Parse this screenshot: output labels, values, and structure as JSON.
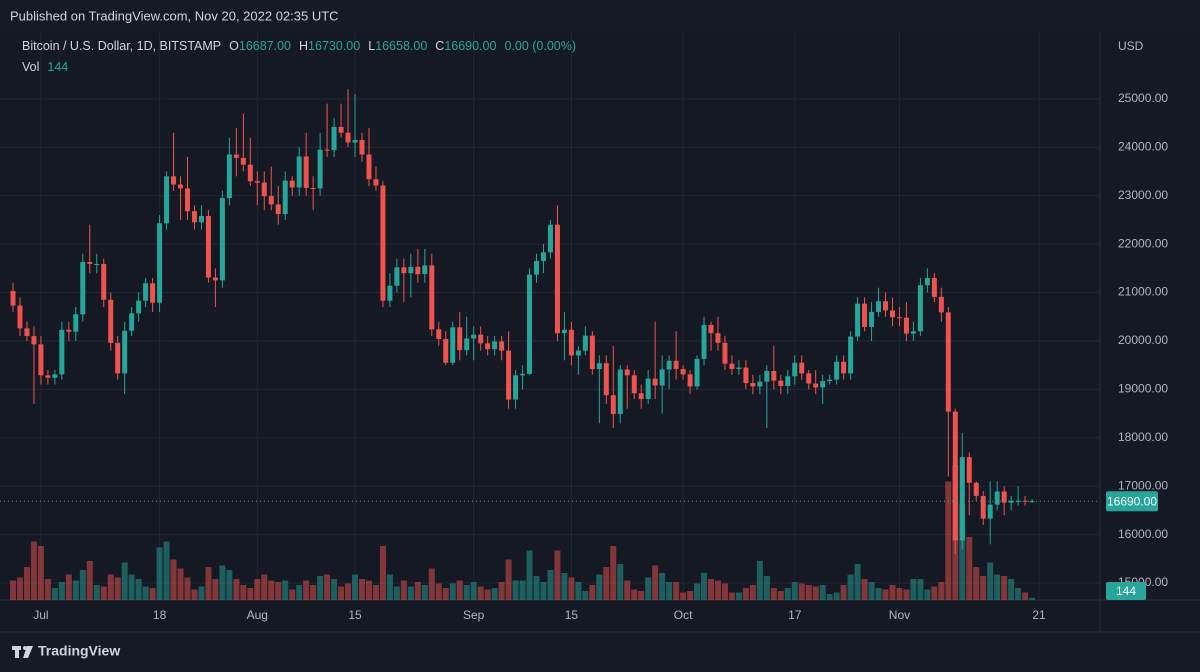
{
  "header": {
    "published": "Published on TradingView.com, Nov 20, 2022 02:35 UTC"
  },
  "chart_data": {
    "type": "candlestick",
    "title": "Bitcoin / U.S. Dollar, 1D, BITSTAMP",
    "legend": {
      "o_label": "O",
      "o": "16687.00",
      "h_label": "H",
      "h": "16730.00",
      "l_label": "L",
      "l": "16658.00",
      "c_label": "C",
      "c": "16690.00",
      "change": "0.00 (0.00%)",
      "vol_label": "Vol",
      "vol": "144"
    },
    "currency": "USD",
    "x": [
      "2022-06-27",
      "2022-06-28",
      "2022-06-29",
      "2022-06-30",
      "2022-07-01",
      "2022-07-02",
      "2022-07-03",
      "2022-07-04",
      "2022-07-05",
      "2022-07-06",
      "2022-07-07",
      "2022-07-08",
      "2022-07-09",
      "2022-07-10",
      "2022-07-11",
      "2022-07-12",
      "2022-07-13",
      "2022-07-14",
      "2022-07-15",
      "2022-07-16",
      "2022-07-17",
      "2022-07-18",
      "2022-07-19",
      "2022-07-20",
      "2022-07-21",
      "2022-07-22",
      "2022-07-23",
      "2022-07-24",
      "2022-07-25",
      "2022-07-26",
      "2022-07-27",
      "2022-07-28",
      "2022-07-29",
      "2022-07-30",
      "2022-07-31",
      "2022-08-01",
      "2022-08-02",
      "2022-08-03",
      "2022-08-04",
      "2022-08-05",
      "2022-08-06",
      "2022-08-07",
      "2022-08-08",
      "2022-08-09",
      "2022-08-10",
      "2022-08-11",
      "2022-08-12",
      "2022-08-13",
      "2022-08-14",
      "2022-08-15",
      "2022-08-16",
      "2022-08-17",
      "2022-08-18",
      "2022-08-19",
      "2022-08-20",
      "2022-08-21",
      "2022-08-22",
      "2022-08-23",
      "2022-08-24",
      "2022-08-25",
      "2022-08-26",
      "2022-08-27",
      "2022-08-28",
      "2022-08-29",
      "2022-08-30",
      "2022-08-31",
      "2022-09-01",
      "2022-09-02",
      "2022-09-03",
      "2022-09-04",
      "2022-09-05",
      "2022-09-06",
      "2022-09-07",
      "2022-09-08",
      "2022-09-09",
      "2022-09-10",
      "2022-09-11",
      "2022-09-12",
      "2022-09-13",
      "2022-09-14",
      "2022-09-15",
      "2022-09-16",
      "2022-09-17",
      "2022-09-18",
      "2022-09-19",
      "2022-09-20",
      "2022-09-21",
      "2022-09-22",
      "2022-09-23",
      "2022-09-24",
      "2022-09-25",
      "2022-09-26",
      "2022-09-27",
      "2022-09-28",
      "2022-09-29",
      "2022-09-30",
      "2022-10-01",
      "2022-10-02",
      "2022-10-03",
      "2022-10-04",
      "2022-10-05",
      "2022-10-06",
      "2022-10-07",
      "2022-10-08",
      "2022-10-09",
      "2022-10-10",
      "2022-10-11",
      "2022-10-12",
      "2022-10-13",
      "2022-10-14",
      "2022-10-15",
      "2022-10-16",
      "2022-10-17",
      "2022-10-18",
      "2022-10-19",
      "2022-10-20",
      "2022-10-21",
      "2022-10-22",
      "2022-10-23",
      "2022-10-24",
      "2022-10-25",
      "2022-10-26",
      "2022-10-27",
      "2022-10-28",
      "2022-10-29",
      "2022-10-30",
      "2022-10-31",
      "2022-11-01",
      "2022-11-02",
      "2022-11-03",
      "2022-11-04",
      "2022-11-05",
      "2022-11-06",
      "2022-11-07",
      "2022-11-08",
      "2022-11-09",
      "2022-11-10",
      "2022-11-11",
      "2022-11-12",
      "2022-11-13",
      "2022-11-14",
      "2022-11-15",
      "2022-11-16",
      "2022-11-17",
      "2022-11-18",
      "2022-11-19",
      "2022-11-20"
    ],
    "open": [
      21030,
      20730,
      20260,
      20100,
      19930,
      19290,
      19240,
      19310,
      20230,
      20190,
      20550,
      21630,
      21590,
      21590,
      20850,
      19960,
      19330,
      20210,
      20570,
      20830,
      21190,
      20790,
      22430,
      23400,
      23230,
      23150,
      22680,
      22450,
      22580,
      21310,
      21250,
      22950,
      23850,
      23780,
      23640,
      23300,
      23270,
      22990,
      22820,
      22620,
      23310,
      23170,
      23810,
      23160,
      23150,
      23950,
      23940,
      24420,
      24300,
      24100,
      24150,
      23850,
      23340,
      23210,
      20830,
      21140,
      21520,
      21400,
      21530,
      21380,
      21560,
      20240,
      20040,
      19550,
      20280,
      19810,
      20050,
      20130,
      19950,
      19830,
      19990,
      19800,
      18790,
      19290,
      19320,
      21370,
      21650,
      21830,
      22400,
      20160,
      20230,
      19700,
      19800,
      20110,
      19420,
      19540,
      18880,
      18490,
      19410,
      19290,
      18920,
      18800,
      19220,
      19080,
      19410,
      19590,
      19420,
      19310,
      19060,
      19630,
      20330,
      20160,
      19960,
      19530,
      19420,
      19450,
      19130,
      19060,
      19160,
      19380,
      19180,
      19070,
      19270,
      19550,
      19330,
      19120,
      19040,
      19170,
      19200,
      19570,
      19330,
      20090,
      20770,
      20290,
      20600,
      20820,
      20630,
      20490,
      20480,
      20150,
      20200,
      21150,
      21300,
      20910,
      20590,
      18540,
      15880,
      17600,
      17070,
      16800,
      16330,
      16620,
      16890,
      16660,
      16700,
      16700,
      16687
    ],
    "high": [
      21200,
      20900,
      20400,
      20300,
      20100,
      19400,
      19400,
      20400,
      20400,
      20700,
      21800,
      22400,
      21800,
      21700,
      21000,
      20100,
      20400,
      20700,
      21000,
      21300,
      21300,
      22600,
      23500,
      24300,
      23400,
      23800,
      22800,
      22800,
      22700,
      21500,
      23100,
      24200,
      24400,
      24700,
      24200,
      23500,
      23500,
      23600,
      23200,
      23500,
      23400,
      24000,
      24300,
      23400,
      24300,
      24900,
      24600,
      24900,
      25200,
      25100,
      24300,
      24400,
      23600,
      23300,
      21400,
      21700,
      21700,
      21800,
      21900,
      21900,
      21800,
      20400,
      20200,
      20400,
      20600,
      20500,
      20300,
      20300,
      20100,
      20100,
      20100,
      20200,
      19400,
      19500,
      21500,
      21800,
      22000,
      22500,
      22800,
      20600,
      20400,
      19900,
      20300,
      20200,
      19700,
      19700,
      19900,
      19500,
      19500,
      19400,
      19100,
      19400,
      20400,
      19700,
      19700,
      20200,
      19500,
      19400,
      19700,
      20500,
      20400,
      20500,
      20100,
      19700,
      19600,
      19600,
      19300,
      19300,
      19500,
      19900,
      19300,
      19400,
      19700,
      19700,
      19400,
      19400,
      19300,
      19300,
      19700,
      19700,
      20200,
      20900,
      20900,
      20800,
      21100,
      21000,
      20900,
      20700,
      20800,
      20400,
      21300,
      21500,
      21400,
      21100,
      20700,
      18600,
      18100,
      17700,
      17100,
      16900,
      17100,
      17100,
      17000,
      16800,
      17000,
      16800,
      16730
    ],
    "low": [
      20600,
      20100,
      20000,
      18700,
      19100,
      19100,
      19100,
      19200,
      20000,
      20000,
      20400,
      21400,
      21400,
      20700,
      19800,
      19200,
      18900,
      20100,
      20400,
      20700,
      20600,
      20600,
      22300,
      23100,
      22500,
      22500,
      22300,
      22300,
      21200,
      20700,
      21100,
      22800,
      23400,
      23500,
      23200,
      22800,
      22700,
      22700,
      22400,
      22500,
      23000,
      23000,
      23000,
      22700,
      23000,
      23800,
      23800,
      24200,
      24000,
      23800,
      23700,
      23200,
      23100,
      20700,
      20700,
      21000,
      20800,
      20900,
      21200,
      21200,
      20100,
      19900,
      19500,
      19500,
      19600,
      19700,
      19600,
      19800,
      19700,
      19700,
      19600,
      18600,
      18600,
      19000,
      19300,
      21200,
      21400,
      21700,
      20000,
      19600,
      19500,
      19300,
      19700,
      19300,
      18300,
      18700,
      18200,
      18300,
      18600,
      18800,
      18600,
      18700,
      18800,
      18500,
      19000,
      19200,
      19200,
      18900,
      19000,
      19500,
      19800,
      19800,
      19400,
      19300,
      19300,
      19000,
      18900,
      18900,
      18200,
      19000,
      18900,
      18900,
      19100,
      19200,
      19000,
      18900,
      18700,
      19100,
      19100,
      19200,
      19200,
      20000,
      20200,
      20000,
      20500,
      20500,
      20300,
      20300,
      20000,
      20000,
      20100,
      21000,
      20800,
      20400,
      17200,
      15600,
      15700,
      16400,
      16700,
      16200,
      15800,
      16500,
      16400,
      16500,
      16600,
      16600,
      16658
    ],
    "close": [
      20730,
      20260,
      20100,
      19930,
      19290,
      19240,
      19310,
      20230,
      20190,
      20550,
      21630,
      21590,
      21590,
      20850,
      19960,
      19330,
      20210,
      20570,
      20830,
      21190,
      20790,
      22430,
      23400,
      23230,
      23150,
      22680,
      22450,
      22580,
      21310,
      21250,
      22950,
      23850,
      23780,
      23640,
      23300,
      23270,
      22990,
      22820,
      22620,
      23310,
      23170,
      23810,
      23160,
      23150,
      23950,
      23940,
      24420,
      24300,
      24100,
      24150,
      23850,
      23340,
      23210,
      20830,
      21140,
      21520,
      21400,
      21530,
      21380,
      21560,
      20240,
      20040,
      19550,
      20280,
      19810,
      20050,
      20130,
      19950,
      19830,
      19990,
      19800,
      18790,
      19290,
      19320,
      21370,
      21650,
      21830,
      22400,
      20160,
      20230,
      19700,
      19800,
      20110,
      19420,
      19540,
      18880,
      18490,
      19410,
      19290,
      18920,
      18800,
      19220,
      19080,
      19410,
      19590,
      19420,
      19310,
      19060,
      19630,
      20330,
      20160,
      19960,
      19530,
      19420,
      19450,
      19130,
      19060,
      19160,
      19380,
      19180,
      19070,
      19270,
      19550,
      19330,
      19120,
      19040,
      19170,
      19200,
      19570,
      19330,
      20090,
      20770,
      20290,
      20600,
      20820,
      20630,
      20490,
      20480,
      20150,
      20200,
      21150,
      21300,
      20910,
      20590,
      18540,
      15880,
      17600,
      17070,
      16800,
      16330,
      16620,
      16890,
      16660,
      16700,
      16700,
      16687,
      16690
    ],
    "volume": [
      1300,
      1500,
      2200,
      3900,
      3600,
      1400,
      800,
      1200,
      1700,
      1300,
      2000,
      2600,
      1000,
      900,
      1700,
      1500,
      2500,
      1700,
      1400,
      900,
      800,
      3500,
      3900,
      2700,
      2100,
      1500,
      700,
      900,
      2200,
      1400,
      2300,
      2000,
      1400,
      1000,
      800,
      1400,
      1700,
      1300,
      1200,
      1300,
      700,
      1000,
      1300,
      1000,
      1600,
      1700,
      1400,
      900,
      1100,
      1700,
      1400,
      1300,
      1000,
      3600,
      1700,
      900,
      1300,
      900,
      1200,
      1000,
      2100,
      1100,
      800,
      1100,
      1300,
      1000,
      1200,
      900,
      700,
      800,
      1200,
      2700,
      1300,
      1300,
      3300,
      1600,
      1200,
      2000,
      3300,
      1800,
      1500,
      1200,
      600,
      1000,
      1700,
      2200,
      3600,
      2400,
      1300,
      700,
      600,
      1500,
      2300,
      1800,
      1200,
      1200,
      500,
      600,
      1100,
      1800,
      1400,
      1300,
      1100,
      500,
      500,
      800,
      1000,
      2600,
      1600,
      800,
      600,
      800,
      1200,
      1100,
      1000,
      900,
      1000,
      400,
      500,
      1000,
      1700,
      2400,
      1400,
      1200,
      800,
      700,
      1000,
      800,
      700,
      1400,
      1400,
      700,
      900,
      1200,
      7900,
      9000,
      6400,
      4200,
      2200,
      1600,
      2500,
      1700,
      1600,
      1400,
      800,
      500,
      144
    ],
    "up_color": "#26a69a",
    "down_color": "#ef5350",
    "ylim": [
      14650,
      26380
    ],
    "yticks": [
      {
        "value": 15000,
        "label": "15000.00"
      },
      {
        "value": 16000,
        "label": "16000.00"
      },
      {
        "value": 17000,
        "label": "17000.00"
      },
      {
        "value": 18000,
        "label": "18000.00"
      },
      {
        "value": 19000,
        "label": "19000.00"
      },
      {
        "value": 20000,
        "label": "20000.00"
      },
      {
        "value": 21000,
        "label": "21000.00"
      },
      {
        "value": 22000,
        "label": "22000.00"
      },
      {
        "value": 23000,
        "label": "23000.00"
      },
      {
        "value": 24000,
        "label": "24000.00"
      },
      {
        "value": 25000,
        "label": "25000.00"
      }
    ],
    "volume_lim": [
      0,
      10000
    ],
    "xticks": [
      {
        "value": "2022-07-01",
        "label": "Jul"
      },
      {
        "value": "2022-07-18",
        "label": "18"
      },
      {
        "value": "2022-08-01",
        "label": "Aug"
      },
      {
        "value": "2022-08-15",
        "label": "15"
      },
      {
        "value": "2022-09-01",
        "label": "Sep"
      },
      {
        "value": "2022-09-15",
        "label": "15"
      },
      {
        "value": "2022-10-01",
        "label": "Oct"
      },
      {
        "value": "2022-10-17",
        "label": "17"
      },
      {
        "value": "2022-11-01",
        "label": "Nov"
      },
      {
        "value": "2022-11-21",
        "label": "21"
      }
    ],
    "last_price_label": "16690.00",
    "last_volume_label": "144",
    "grid": true
  },
  "footer": {
    "brand": "TradingView"
  }
}
